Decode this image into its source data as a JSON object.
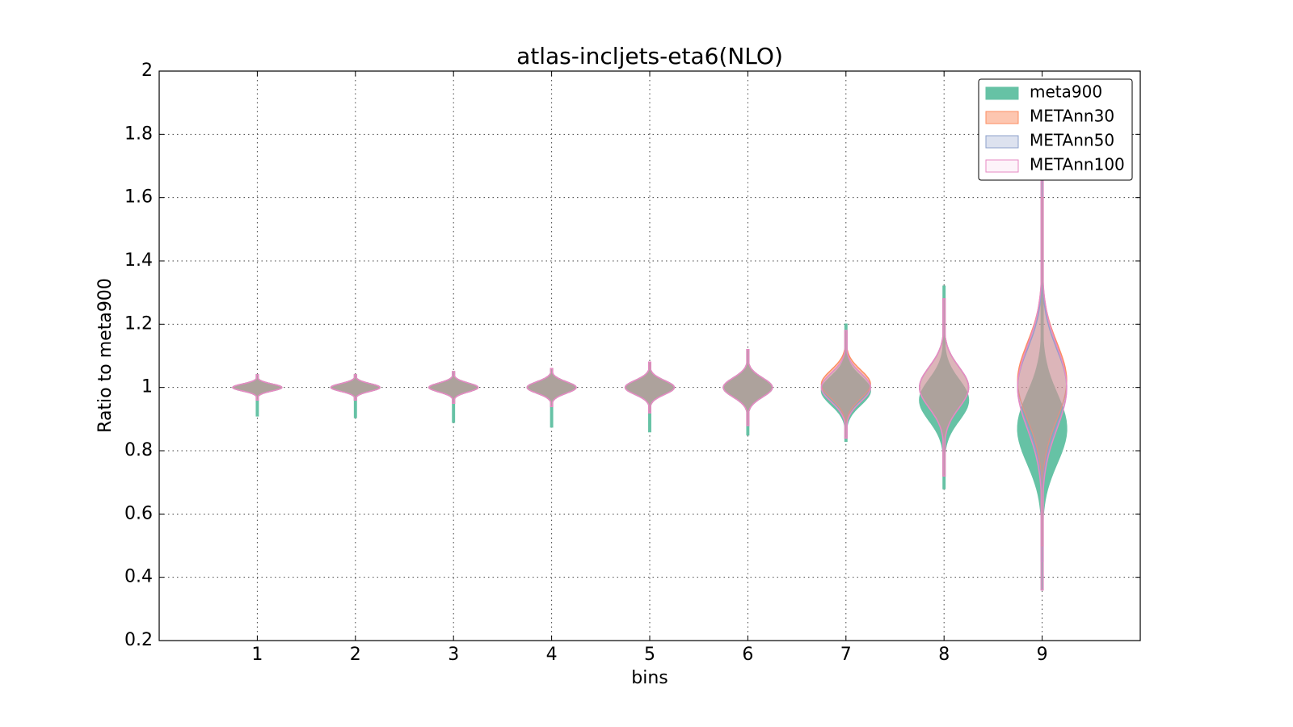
{
  "chart_data": {
    "type": "violin",
    "title": "atlas-incljets-eta6(NLO)",
    "x_label": "bins",
    "y_label": "Ratio to meta900",
    "categories": [
      "1",
      "2",
      "3",
      "4",
      "5",
      "6",
      "7",
      "8",
      "9"
    ],
    "xlim": [
      0,
      10
    ],
    "ylim": [
      0.2,
      2.0
    ],
    "yticks": [
      0.2,
      0.4,
      0.6,
      0.8,
      1.0,
      1.2,
      1.4,
      1.6,
      1.8,
      2.0
    ],
    "grid": true,
    "legend": "upper right",
    "series": [
      {
        "name": "meta900",
        "color": "#66c2a5",
        "opacity": 1.0,
        "values": [
          {
            "min": 0.91,
            "max": 1.04,
            "mean": 1.0,
            "sd": 0.011
          },
          {
            "min": 0.905,
            "max": 1.04,
            "mean": 1.0,
            "sd": 0.012
          },
          {
            "min": 0.89,
            "max": 1.05,
            "mean": 1.0,
            "sd": 0.014
          },
          {
            "min": 0.875,
            "max": 1.06,
            "mean": 1.0,
            "sd": 0.018
          },
          {
            "min": 0.86,
            "max": 1.08,
            "mean": 1.0,
            "sd": 0.022
          },
          {
            "min": 0.85,
            "max": 1.12,
            "mean": 1.0,
            "sd": 0.03
          },
          {
            "min": 0.83,
            "max": 1.2,
            "mean": 0.99,
            "sd": 0.045
          },
          {
            "min": 0.68,
            "max": 1.32,
            "mean": 0.96,
            "sd": 0.065
          },
          {
            "min": 0.36,
            "max": 1.7,
            "mean": 0.87,
            "sd": 0.11
          }
        ]
      },
      {
        "name": "METAnn30",
        "color": "#fc8d62",
        "opacity": 0.5,
        "values": [
          {
            "min": 0.96,
            "max": 1.04,
            "mean": 1.0,
            "sd": 0.011
          },
          {
            "min": 0.96,
            "max": 1.04,
            "mean": 1.0,
            "sd": 0.012
          },
          {
            "min": 0.95,
            "max": 1.05,
            "mean": 1.0,
            "sd": 0.014
          },
          {
            "min": 0.94,
            "max": 1.06,
            "mean": 1.0,
            "sd": 0.018
          },
          {
            "min": 0.92,
            "max": 1.08,
            "mean": 1.0,
            "sd": 0.022
          },
          {
            "min": 0.88,
            "max": 1.12,
            "mean": 1.0,
            "sd": 0.03
          },
          {
            "min": 0.84,
            "max": 1.18,
            "mean": 1.01,
            "sd": 0.045
          },
          {
            "min": 0.72,
            "max": 1.28,
            "mean": 1.0,
            "sd": 0.065
          },
          {
            "min": 0.5,
            "max": 1.6,
            "mean": 1.02,
            "sd": 0.12
          }
        ]
      },
      {
        "name": "METAnn50",
        "color": "#8da0cb",
        "opacity": 0.3,
        "values": [
          {
            "min": 0.96,
            "max": 1.04,
            "mean": 1.0,
            "sd": 0.011
          },
          {
            "min": 0.96,
            "max": 1.04,
            "mean": 1.0,
            "sd": 0.012
          },
          {
            "min": 0.95,
            "max": 1.05,
            "mean": 1.0,
            "sd": 0.014
          },
          {
            "min": 0.94,
            "max": 1.06,
            "mean": 1.0,
            "sd": 0.018
          },
          {
            "min": 0.92,
            "max": 1.08,
            "mean": 1.0,
            "sd": 0.022
          },
          {
            "min": 0.88,
            "max": 1.12,
            "mean": 1.0,
            "sd": 0.03
          },
          {
            "min": 0.84,
            "max": 1.18,
            "mean": 1.0,
            "sd": 0.045
          },
          {
            "min": 0.72,
            "max": 1.28,
            "mean": 1.0,
            "sd": 0.065
          },
          {
            "min": 0.45,
            "max": 1.65,
            "mean": 1.0,
            "sd": 0.12
          }
        ]
      },
      {
        "name": "METAnn100",
        "color": "#e78ac3",
        "opacity": 0.1,
        "values": [
          {
            "min": 0.96,
            "max": 1.04,
            "mean": 1.0,
            "sd": 0.011
          },
          {
            "min": 0.96,
            "max": 1.04,
            "mean": 1.0,
            "sd": 0.012
          },
          {
            "min": 0.95,
            "max": 1.05,
            "mean": 1.0,
            "sd": 0.014
          },
          {
            "min": 0.94,
            "max": 1.06,
            "mean": 1.0,
            "sd": 0.018
          },
          {
            "min": 0.92,
            "max": 1.08,
            "mean": 1.0,
            "sd": 0.022
          },
          {
            "min": 0.88,
            "max": 1.12,
            "mean": 1.0,
            "sd": 0.03
          },
          {
            "min": 0.84,
            "max": 1.18,
            "mean": 1.0,
            "sd": 0.045
          },
          {
            "min": 0.72,
            "max": 1.28,
            "mean": 1.0,
            "sd": 0.065
          },
          {
            "min": 0.36,
            "max": 1.68,
            "mean": 1.0,
            "sd": 0.13
          }
        ]
      }
    ]
  }
}
